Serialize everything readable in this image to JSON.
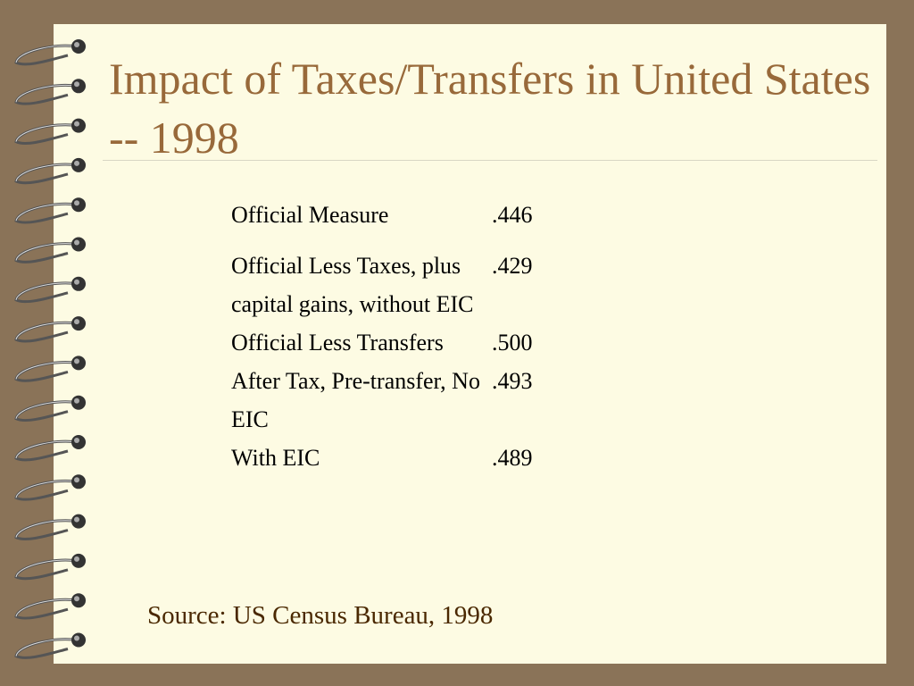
{
  "header": {
    "title": "Impact of Taxes/Transfers in United States -- 1998"
  },
  "table": {
    "rows": [
      [
        "Official Measure",
        ".446"
      ],
      [
        "Official Less Taxes, plus capital gains, without EIC",
        ".429"
      ],
      [
        "Official Less Transfers",
        ".500"
      ],
      [
        "After Tax, Pre-transfer, No EIC",
        ".493"
      ],
      [
        "With EIC",
        ".489"
      ]
    ]
  },
  "footer": {
    "source": "Source: US Census Bureau, 1998"
  }
}
